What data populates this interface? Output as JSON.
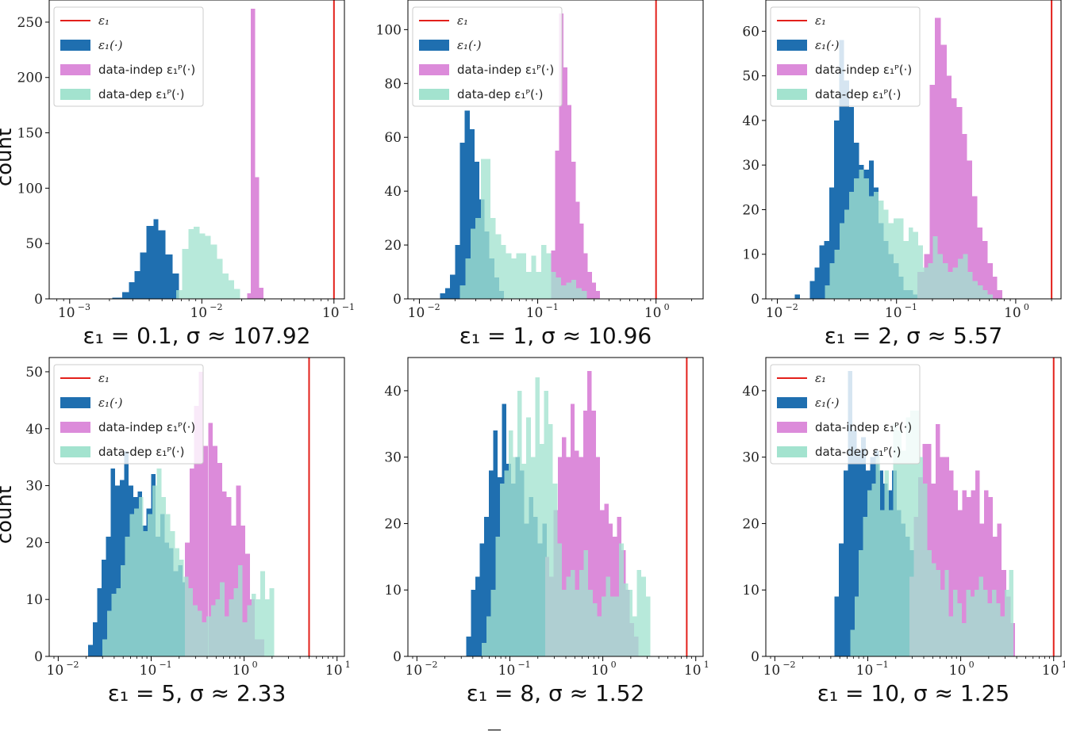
{
  "figure": {
    "bottom_mark": "—"
  },
  "legend_labels": {
    "line": "ε₁",
    "eps": "ε₁(·)",
    "indep": "data-indep ε₁ᴾ(·)",
    "dep": "data-dep ε₁ᴾ(·)"
  },
  "colors": {
    "line": "#e3201b",
    "eps": "#1f6fb0",
    "indep": "#dc8bda",
    "dep": "#a3e3cf",
    "overlap_eps_dep": "#48aaa9",
    "overlap_indep_dep": "#9cb5c1"
  },
  "chart_data": [
    {
      "type": "bar",
      "x_scale": "log",
      "title": "",
      "xlabel": "ε₁ = 0.1, σ ≈ 107.92",
      "ylabel": "count",
      "xlim": [
        0.0007,
        0.12
      ],
      "ylim": [
        0,
        270
      ],
      "yticks": [
        0,
        50,
        100,
        150,
        200,
        250
      ],
      "xticks": [
        0.001,
        0.01,
        0.1
      ],
      "xtick_labels": [
        "10⁻³",
        "10⁻²",
        "10⁻¹"
      ],
      "vline": 0.1,
      "legend": "upper left",
      "series": [
        {
          "name": "ε₁(·)",
          "bin_edges": [
            0.0021,
            0.0025,
            0.0028,
            0.0031,
            0.0034,
            0.0038,
            0.0043,
            0.0047,
            0.0053,
            0.006,
            0.0067
          ],
          "counts": [
            1,
            6,
            15,
            25,
            42,
            66,
            72,
            62,
            40,
            23
          ]
        },
        {
          "name": "data-indep ε₁ᴾ(·)",
          "bin_edges": [
            0.022,
            0.0235,
            0.0253,
            0.0272,
            0.0292
          ],
          "counts": [
            5,
            262,
            110,
            10
          ]
        },
        {
          "name": "data-dep ε₁ᴾ(·)",
          "bin_edges": [
            0.0064,
            0.0071,
            0.0079,
            0.0087,
            0.0096,
            0.0106,
            0.0117,
            0.013,
            0.0144,
            0.0159,
            0.0176,
            0.0195
          ],
          "counts": [
            8,
            45,
            63,
            65,
            59,
            57,
            49,
            36,
            23,
            17,
            9
          ]
        }
      ]
    },
    {
      "type": "bar",
      "x_scale": "log",
      "title": "",
      "xlabel": "ε₁ = 1, σ ≈ 10.96",
      "ylabel": "",
      "xlim": [
        0.008,
        2.5
      ],
      "ylim": [
        0,
        111
      ],
      "yticks": [
        0,
        20,
        40,
        60,
        80,
        100
      ],
      "xticks": [
        0.01,
        0.1,
        1
      ],
      "xtick_labels": [
        "10⁻²",
        "10⁻¹",
        "10⁰"
      ],
      "vline": 1,
      "legend": "upper left",
      "series": [
        {
          "name": "ε₁(·)",
          "bin_edges": [
            0.015,
            0.0165,
            0.0182,
            0.02,
            0.022,
            0.0242,
            0.0266,
            0.0293,
            0.0322,
            0.0354,
            0.039,
            0.0429,
            0.0472,
            0.052
          ],
          "counts": [
            2,
            4,
            9,
            20,
            58,
            70,
            63,
            51,
            37,
            25,
            15,
            8,
            3
          ]
        },
        {
          "name": "data-indep ε₁ᴾ(·)",
          "bin_edges": [
            0.13,
            0.14,
            0.152,
            0.165,
            0.178,
            0.193,
            0.209,
            0.226,
            0.245,
            0.265,
            0.287,
            0.31,
            0.336
          ],
          "counts": [
            18,
            55,
            106,
            86,
            72,
            51,
            36,
            28,
            17,
            10,
            6,
            3
          ]
        },
        {
          "name": "data-dep ε₁ᴾ(·)",
          "bin_edges": [
            0.022,
            0.0245,
            0.027,
            0.0298,
            0.033,
            0.0365,
            0.04,
            0.044,
            0.049,
            0.054,
            0.06,
            0.066,
            0.073,
            0.08,
            0.088,
            0.097,
            0.107,
            0.118,
            0.13,
            0.143,
            0.158,
            0.174,
            0.192,
            0.212,
            0.235,
            0.26
          ],
          "counts": [
            5,
            15,
            26,
            30,
            52,
            52,
            30,
            24,
            20,
            17,
            15,
            17,
            17,
            10,
            16,
            10,
            20,
            17,
            10,
            8,
            5,
            6,
            7,
            4,
            3
          ]
        }
      ]
    },
    {
      "type": "bar",
      "x_scale": "log",
      "title": "",
      "xlabel": "ε₁ = 2, σ ≈ 5.57",
      "ylabel": "",
      "xlim": [
        0.008,
        2.4
      ],
      "ylim": [
        0,
        67
      ],
      "yticks": [
        0,
        10,
        20,
        30,
        40,
        50,
        60
      ],
      "xticks": [
        0.01,
        0.1,
        1
      ],
      "xtick_labels": [
        "10⁻²",
        "10⁻¹",
        "10⁰"
      ],
      "vline": 2,
      "legend": "upper left",
      "series": [
        {
          "name": "ε₁(·)",
          "bin_edges": [
            0.014,
            0.0155,
            0.017,
            0.0187,
            0.0205,
            0.0225,
            0.0247,
            0.0272,
            0.0299,
            0.033,
            0.0363,
            0.04,
            0.044,
            0.0484,
            0.0532,
            0.0585,
            0.0644,
            0.0708,
            0.078,
            0.0858,
            0.0944,
            0.104,
            0.114,
            0.126,
            0.138,
            0.152
          ],
          "counts": [
            1,
            0,
            0,
            4,
            7,
            12,
            13,
            25,
            40,
            58,
            49,
            43,
            35,
            30,
            29,
            31,
            25,
            17,
            13,
            10,
            8,
            5,
            2,
            2,
            1
          ]
        },
        {
          "name": "data-indep ε₁ᴾ(·)",
          "bin_edges": [
            0.15,
            0.17,
            0.19,
            0.21,
            0.235,
            0.263,
            0.29,
            0.32,
            0.355,
            0.39,
            0.43,
            0.475,
            0.525,
            0.58,
            0.64,
            0.7,
            0.77
          ],
          "counts": [
            6,
            10,
            48,
            63,
            57,
            50,
            45,
            43,
            37,
            31,
            23,
            16,
            13,
            8,
            5,
            2
          ]
        },
        {
          "name": "data-dep ε₁ᴾ(·)",
          "bin_edges": [
            0.025,
            0.0275,
            0.0302,
            0.0332,
            0.0365,
            0.04,
            0.044,
            0.0484,
            0.0532,
            0.0585,
            0.0644,
            0.0708,
            0.078,
            0.0858,
            0.0944,
            0.104,
            0.114,
            0.126,
            0.138,
            0.152,
            0.167,
            0.184,
            0.202,
            0.222,
            0.245,
            0.27,
            0.297,
            0.326,
            0.36,
            0.395,
            0.435,
            0.48,
            0.53,
            0.58,
            0.64
          ],
          "counts": [
            3,
            8,
            11,
            17,
            20,
            24,
            27,
            29,
            27,
            23,
            24,
            22,
            20,
            17,
            18,
            18,
            13,
            16,
            15,
            12,
            7,
            8,
            14,
            10,
            8,
            6,
            7,
            9,
            10,
            6,
            4,
            3,
            2,
            1
          ]
        }
      ]
    },
    {
      "type": "bar",
      "x_scale": "log",
      "title": "",
      "xlabel": "ε₁ = 5, σ ≈ 2.33",
      "ylabel": "count",
      "xlim": [
        0.008,
        12
      ],
      "ylim": [
        0,
        52.5
      ],
      "yticks": [
        0,
        10,
        20,
        30,
        40,
        50
      ],
      "xticks": [
        0.01,
        0.1,
        1,
        10
      ],
      "xtick_labels": [
        "10⁻²",
        "10⁻¹",
        "10⁰",
        "10¹"
      ],
      "vline": 5,
      "legend": "upper left",
      "series": [
        {
          "name": "ε₁(·)",
          "bin_edges": [
            0.021,
            0.0235,
            0.0262,
            0.0293,
            0.0327,
            0.0366,
            0.041,
            0.0458,
            0.0512,
            0.0572,
            0.064,
            0.0715,
            0.08,
            0.0893,
            0.1,
            0.112,
            0.125,
            0.14,
            0.156,
            0.174,
            0.195,
            0.218,
            0.243,
            0.272
          ],
          "counts": [
            2,
            6,
            12,
            17,
            21,
            33,
            30,
            31,
            36,
            30,
            28,
            29,
            23,
            26,
            32,
            21,
            25,
            20,
            19,
            15,
            16,
            13,
            14
          ]
        },
        {
          "name": "data-indep ε₁ᴾ(·)",
          "bin_edges": [
            0.23,
            0.26,
            0.29,
            0.325,
            0.365,
            0.41,
            0.46,
            0.515,
            0.58,
            0.65,
            0.73,
            0.82,
            0.92,
            1.03,
            1.16,
            1.3,
            1.46,
            1.64
          ],
          "counts": [
            20,
            33,
            44,
            50,
            37,
            41,
            37,
            34,
            29,
            28,
            23,
            30,
            23,
            18,
            10,
            3,
            3
          ]
        },
        {
          "name": "data-dep ε₁ᴾ(·)",
          "bin_edges": [
            0.03,
            0.0335,
            0.0375,
            0.042,
            0.047,
            0.0525,
            0.0588,
            0.0658,
            0.0735,
            0.082,
            0.092,
            0.103,
            0.115,
            0.129,
            0.144,
            0.161,
            0.18,
            0.201,
            0.225,
            0.252,
            0.282,
            0.315,
            0.352,
            0.394,
            0.44,
            0.492,
            0.55,
            0.615,
            0.688,
            0.77,
            0.86,
            0.962,
            1.076,
            1.2,
            1.345,
            1.5,
            1.68,
            1.88,
            2.1
          ],
          "counts": [
            3,
            8,
            11,
            12,
            16,
            21,
            25,
            26,
            28,
            22,
            25,
            30,
            33,
            28,
            25,
            22,
            19,
            17,
            14,
            12,
            9,
            8,
            6,
            7,
            9,
            10,
            13,
            7,
            10,
            12,
            16,
            6,
            9,
            11,
            10,
            15,
            10,
            12
          ]
        }
      ]
    },
    {
      "type": "bar",
      "x_scale": "log",
      "title": "",
      "xlabel": "ε₁ = 8, σ ≈ 1.52",
      "ylabel": "",
      "xlim": [
        0.008,
        12
      ],
      "ylim": [
        0,
        45
      ],
      "yticks": [
        0,
        10,
        20,
        30,
        40
      ],
      "xticks": [
        0.01,
        0.1,
        1,
        10
      ],
      "xtick_labels": [
        "10⁻²",
        "10⁻¹",
        "10⁰",
        "10¹"
      ],
      "vline": 8,
      "legend": "",
      "series": [
        {
          "name": "ε₁(·)",
          "bin_edges": [
            0.034,
            0.038,
            0.0425,
            0.0475,
            0.053,
            0.0592,
            0.066,
            0.0737,
            0.0823,
            0.092,
            0.103,
            0.115,
            0.128,
            0.143,
            0.16,
            0.179,
            0.2,
            0.223,
            0.249,
            0.278
          ],
          "counts": [
            3,
            10,
            12,
            17,
            21,
            28,
            34,
            27,
            38,
            29,
            26,
            30,
            28,
            20,
            24,
            21,
            17,
            20,
            11
          ]
        },
        {
          "name": "data-indep ε₁ᴾ(·)",
          "bin_edges": [
            0.24,
            0.265,
            0.295,
            0.328,
            0.364,
            0.404,
            0.449,
            0.498,
            0.553,
            0.615,
            0.683,
            0.758,
            0.842,
            0.935,
            1.04,
            1.155,
            1.28,
            1.42,
            1.58,
            1.76,
            1.95,
            2.17,
            2.41
          ],
          "counts": [
            15,
            12,
            22,
            30,
            33,
            30,
            38,
            31,
            30,
            37,
            43,
            37,
            30,
            22,
            23,
            20,
            18,
            21,
            16,
            10,
            5,
            3
          ]
        },
        {
          "name": "data-dep ε₁ᴾ(·)",
          "bin_edges": [
            0.05,
            0.056,
            0.0625,
            0.07,
            0.078,
            0.087,
            0.097,
            0.108,
            0.121,
            0.135,
            0.15,
            0.168,
            0.187,
            0.209,
            0.233,
            0.26,
            0.29,
            0.324,
            0.361,
            0.403,
            0.45,
            0.502,
            0.56,
            0.625,
            0.697,
            0.778,
            0.868,
            0.969,
            1.08,
            1.205,
            1.345,
            1.5,
            1.675,
            1.87,
            2.09,
            2.33,
            2.6,
            2.9,
            3.24
          ],
          "counts": [
            2,
            6,
            10,
            18,
            26,
            28,
            34,
            30,
            40,
            29,
            36,
            30,
            42,
            32,
            40,
            35,
            26,
            17,
            10,
            12,
            13,
            10,
            13,
            16,
            10,
            8,
            6,
            9,
            12,
            9,
            9,
            17,
            11,
            10,
            6,
            13,
            12,
            9
          ]
        }
      ]
    },
    {
      "type": "bar",
      "x_scale": "log",
      "title": "",
      "xlabel": "ε₁ = 10, σ ≈ 1.25",
      "ylabel": "",
      "xlim": [
        0.008,
        12
      ],
      "ylim": [
        0,
        45
      ],
      "yticks": [
        0,
        10,
        20,
        30,
        40
      ],
      "xticks": [
        0.01,
        0.1,
        1,
        10
      ],
      "xtick_labels": [
        "10⁻²",
        "10⁻¹",
        "10⁰",
        "10¹"
      ],
      "vline": 10,
      "legend": "upper left",
      "series": [
        {
          "name": "ε₁(·)",
          "bin_edges": [
            0.044,
            0.049,
            0.055,
            0.061,
            0.068,
            0.076,
            0.085,
            0.095,
            0.106,
            0.118,
            0.132,
            0.147,
            0.164,
            0.183,
            0.204,
            0.228,
            0.254,
            0.284,
            0.317
          ],
          "counts": [
            9,
            17,
            28,
            43,
            34,
            31,
            33,
            28,
            30,
            31,
            28,
            26,
            25,
            28,
            22,
            20,
            18,
            16
          ]
        },
        {
          "name": "data-indep ε₁ᴾ(·)",
          "bin_edges": [
            0.28,
            0.312,
            0.348,
            0.388,
            0.433,
            0.483,
            0.539,
            0.601,
            0.67,
            0.747,
            0.833,
            0.929,
            1.036,
            1.155,
            1.288,
            1.436,
            1.6,
            1.785,
            1.99,
            2.22,
            2.475,
            2.76,
            3.08,
            3.43,
            3.83
          ],
          "counts": [
            12,
            21,
            27,
            32,
            32,
            26,
            35,
            30,
            30,
            28,
            25,
            22,
            25,
            24,
            25,
            28,
            20,
            25,
            24,
            18,
            20,
            13,
            9,
            5
          ]
        },
        {
          "name": "data-dep ε₁ᴾ(·)",
          "bin_edges": [
            0.065,
            0.072,
            0.08,
            0.089,
            0.099,
            0.11,
            0.122,
            0.136,
            0.151,
            0.168,
            0.187,
            0.208,
            0.231,
            0.257,
            0.286,
            0.318,
            0.354,
            0.394,
            0.438,
            0.487,
            0.542,
            0.603,
            0.671,
            0.746,
            0.83,
            0.923,
            1.027,
            1.142,
            1.27,
            1.413,
            1.572,
            1.749,
            1.945,
            2.164,
            2.407,
            2.678,
            2.979,
            3.314,
            3.686
          ],
          "counts": [
            4,
            9,
            16,
            21,
            25,
            26,
            30,
            22,
            28,
            22,
            35,
            34,
            31,
            36,
            37,
            37,
            30,
            26,
            16,
            14,
            13,
            10,
            13,
            6,
            10,
            8,
            5,
            10,
            9,
            10,
            12,
            10,
            8,
            10,
            8,
            6,
            10,
            13
          ]
        }
      ]
    }
  ]
}
